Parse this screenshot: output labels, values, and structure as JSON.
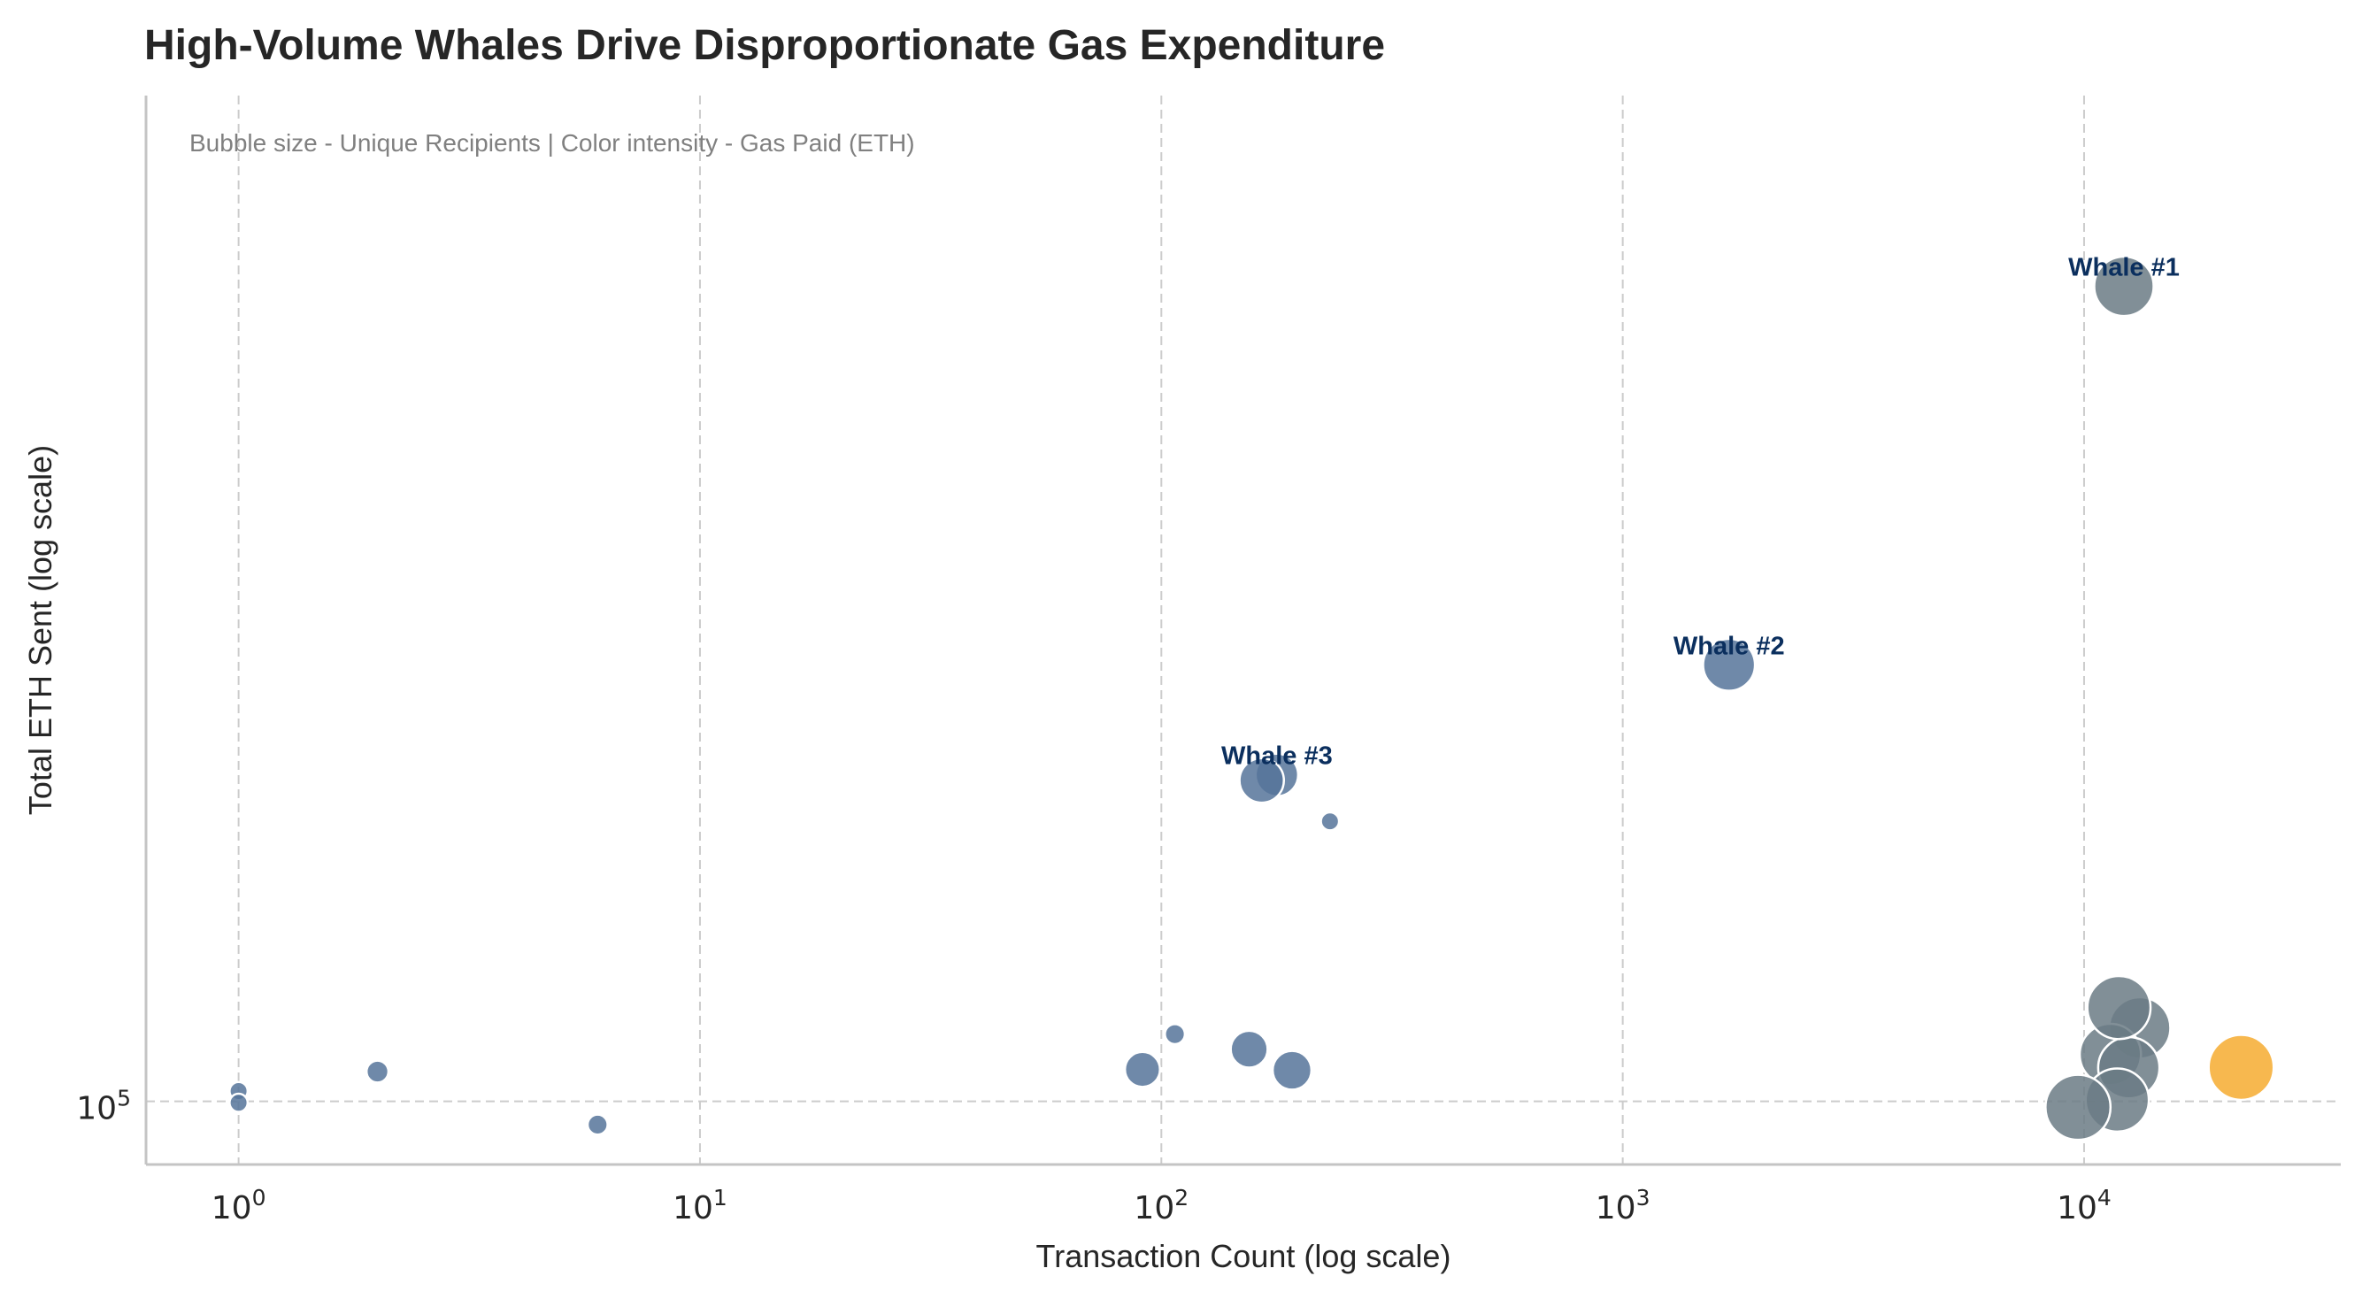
{
  "chart_data": {
    "type": "scatter",
    "title": "High-Volume Whales Drive Disproportionate Gas Expenditure",
    "subtitle": "Bubble size - Unique Recipients | Color intensity - Gas Paid (ETH)",
    "xlabel": "Transaction Count (log scale)",
    "ylabel": "Total ETH Sent (log scale)",
    "xscale": "log",
    "yscale": "log",
    "xlim": [
      0.63,
      36000
    ],
    "ylim": [
      87000,
      920000
    ],
    "x_ticks": [
      {
        "base": "10",
        "exp": "0",
        "value": 1
      },
      {
        "base": "10",
        "exp": "1",
        "value": 10
      },
      {
        "base": "10",
        "exp": "2",
        "value": 100
      },
      {
        "base": "10",
        "exp": "3",
        "value": 1000
      },
      {
        "base": "10",
        "exp": "4",
        "value": 10000
      }
    ],
    "y_ticks": [
      {
        "base": "10",
        "exp": "5",
        "value": 100000
      }
    ],
    "grid": true,
    "colors": {
      "low_gas": "#56749a",
      "mid_gas": "#6b7b85",
      "high_gas": "#f5a623"
    },
    "points": [
      {
        "x": 1,
        "y": 102300,
        "size": 4,
        "gas": "low"
      },
      {
        "x": 1,
        "y": 99700,
        "size": 4,
        "gas": "low"
      },
      {
        "x": 2,
        "y": 106800,
        "size": 6,
        "gas": "low"
      },
      {
        "x": 6,
        "y": 95000,
        "size": 5,
        "gas": "low"
      },
      {
        "x": 91,
        "y": 107300,
        "size": 13,
        "gas": "low"
      },
      {
        "x": 107,
        "y": 116000,
        "size": 5,
        "gas": "low"
      },
      {
        "x": 155,
        "y": 112200,
        "size": 14,
        "gas": "low"
      },
      {
        "x": 192,
        "y": 107100,
        "size": 15,
        "gas": "low"
      },
      {
        "x": 232,
        "y": 185500,
        "size": 4,
        "gas": "low"
      },
      {
        "x": 165,
        "y": 203000,
        "size": 18,
        "gas": "low"
      },
      {
        "x": 178,
        "y": 205500,
        "size": 17,
        "gas": "low"
      },
      {
        "x": 1700,
        "y": 262000,
        "size": 22,
        "gas": "low"
      },
      {
        "x": 12200,
        "y": 604000,
        "size": 26,
        "gas": "mid"
      },
      {
        "x": 11900,
        "y": 123000,
        "size": 28,
        "gas": "mid"
      },
      {
        "x": 13200,
        "y": 117600,
        "size": 27,
        "gas": "mid"
      },
      {
        "x": 11400,
        "y": 110900,
        "size": 27,
        "gas": "mid"
      },
      {
        "x": 12500,
        "y": 107700,
        "size": 27,
        "gas": "mid"
      },
      {
        "x": 11800,
        "y": 100300,
        "size": 28,
        "gas": "mid"
      },
      {
        "x": 9700,
        "y": 98700,
        "size": 29,
        "gas": "mid"
      },
      {
        "x": 21900,
        "y": 107800,
        "size": 29,
        "gas": "high"
      }
    ],
    "annotations": [
      {
        "label": "Whale #1",
        "x": 12200,
        "y": 604000
      },
      {
        "label": "Whale #2",
        "x": 1700,
        "y": 262000
      },
      {
        "label": "Whale #3",
        "x": 178,
        "y": 205500
      }
    ]
  }
}
